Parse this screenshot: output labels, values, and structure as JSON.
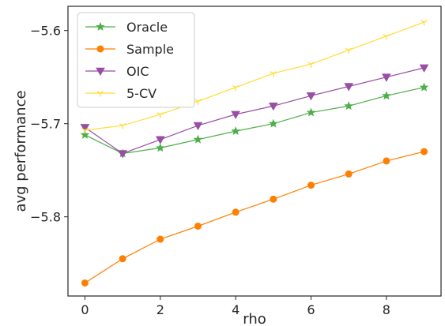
{
  "chart_data": {
    "type": "line",
    "xlabel": "rho",
    "ylabel": "avg performance",
    "xlim": [
      -0.45,
      9.45
    ],
    "ylim": [
      -5.885,
      -5.574
    ],
    "xticks": [
      0,
      2,
      4,
      6,
      8
    ],
    "xtick_labels": [
      "0",
      "2",
      "4",
      "6",
      "8"
    ],
    "yticks": [
      -5.6,
      -5.7,
      -5.8
    ],
    "ytick_labels": [
      "−5.6",
      "−5.7",
      "−5.8"
    ],
    "grid": false,
    "legend_position": "top-left",
    "x": [
      0,
      1,
      2,
      3,
      4,
      5,
      6,
      7,
      8,
      9
    ],
    "series": [
      {
        "name": "Oracle",
        "color": "#4daf4a",
        "marker": "star",
        "values": [
          -5.712,
          -5.732,
          -5.726,
          -5.717,
          -5.708,
          -5.7,
          -5.688,
          -5.681,
          -5.67,
          -5.661
        ]
      },
      {
        "name": "Sample",
        "color": "#ff7f00",
        "marker": "circle",
        "values": [
          -5.871,
          -5.845,
          -5.824,
          -5.81,
          -5.795,
          -5.781,
          -5.766,
          -5.754,
          -5.74,
          -5.73
        ]
      },
      {
        "name": "OIC",
        "color": "#984ea3",
        "marker": "triangle-down",
        "values": [
          -5.704,
          -5.732,
          -5.717,
          -5.702,
          -5.69,
          -5.681,
          -5.67,
          -5.66,
          -5.65,
          -5.64
        ]
      },
      {
        "name": "5-CV",
        "color": "#ffdd33",
        "marker": "tri-down",
        "values": [
          -5.707,
          -5.702,
          -5.69,
          -5.676,
          -5.661,
          -5.646,
          -5.636,
          -5.621,
          -5.606,
          -5.591
        ]
      }
    ]
  }
}
